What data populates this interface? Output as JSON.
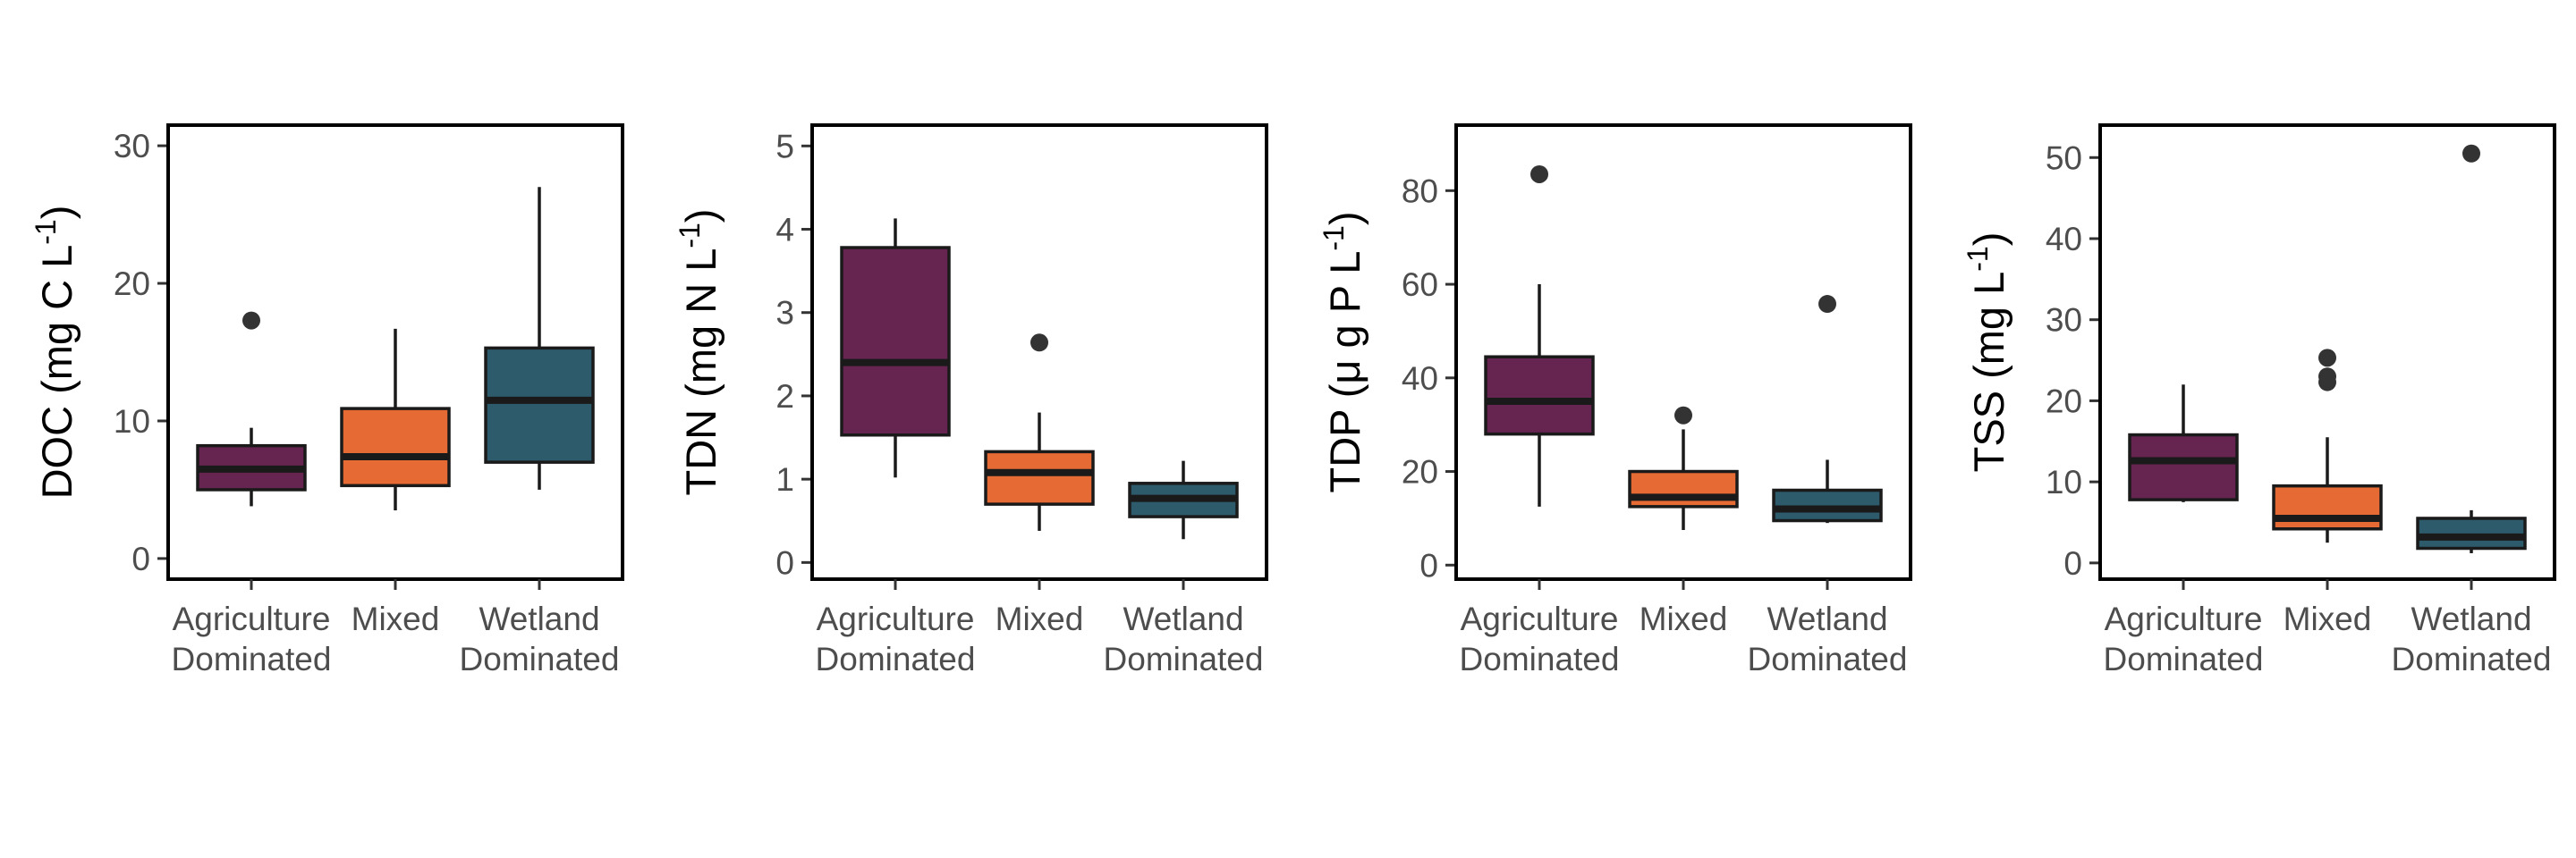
{
  "colors": {
    "Agriculture Dominated": "#662450",
    "Mixed": "#e56a34",
    "Wetland Dominated": "#2d5b6b"
  },
  "chart_data": [
    {
      "type": "box",
      "ylabel": "DOC (mg C L⁻¹)",
      "ylabel_parts": {
        "name": "DOC",
        "unit_prefix": "mg C L",
        "exponent": "-1"
      },
      "ylim": [
        -1.5,
        31.5
      ],
      "yticks": [
        0,
        10,
        20,
        30
      ],
      "categories": [
        {
          "line1": "Agriculture",
          "line2": "Dominated"
        },
        {
          "line1": "Mixed",
          "line2": ""
        },
        {
          "line1": "Wetland",
          "line2": "Dominated"
        }
      ],
      "boxes": [
        {
          "group": "Agriculture Dominated",
          "whisker_low": 3.8,
          "q1": 5.0,
          "median": 6.5,
          "q3": 8.2,
          "whisker_high": 9.5,
          "outliers": [
            17.3
          ]
        },
        {
          "group": "Mixed",
          "whisker_low": 3.5,
          "q1": 5.3,
          "median": 7.4,
          "q3": 10.9,
          "whisker_high": 16.7,
          "outliers": []
        },
        {
          "group": "Wetland Dominated",
          "whisker_low": 5.0,
          "q1": 7.0,
          "median": 11.5,
          "q3": 15.3,
          "whisker_high": 27.0,
          "outliers": []
        }
      ]
    },
    {
      "type": "box",
      "ylabel": "TDN (mg N L⁻¹)",
      "ylabel_parts": {
        "name": "TDN",
        "unit_prefix": "mg N L",
        "exponent": "-1"
      },
      "ylim": [
        -0.2,
        5.25
      ],
      "yticks": [
        0,
        1,
        2,
        3,
        4,
        5
      ],
      "categories": [
        {
          "line1": "Agriculture",
          "line2": "Dominated"
        },
        {
          "line1": "Mixed",
          "line2": ""
        },
        {
          "line1": "Wetland",
          "line2": "Dominated"
        }
      ],
      "boxes": [
        {
          "group": "Agriculture Dominated",
          "whisker_low": 1.02,
          "q1": 1.53,
          "median": 2.4,
          "q3": 3.78,
          "whisker_high": 4.13,
          "outliers": []
        },
        {
          "group": "Mixed",
          "whisker_low": 0.38,
          "q1": 0.7,
          "median": 1.08,
          "q3": 1.33,
          "whisker_high": 1.8,
          "outliers": [
            2.64
          ]
        },
        {
          "group": "Wetland Dominated",
          "whisker_low": 0.28,
          "q1": 0.55,
          "median": 0.77,
          "q3": 0.95,
          "whisker_high": 1.22,
          "outliers": []
        }
      ]
    },
    {
      "type": "box",
      "ylabel": "TDP (μ g P L⁻¹)",
      "ylabel_parts": {
        "name": "TDP",
        "unit_prefix": "μ g P L",
        "exponent": "-1"
      },
      "ylim": [
        -3,
        94
      ],
      "yticks": [
        0,
        20,
        40,
        60,
        80
      ],
      "categories": [
        {
          "line1": "Agriculture",
          "line2": "Dominated"
        },
        {
          "line1": "Mixed",
          "line2": ""
        },
        {
          "line1": "Wetland",
          "line2": "Dominated"
        }
      ],
      "boxes": [
        {
          "group": "Agriculture Dominated",
          "whisker_low": 12.5,
          "q1": 28.0,
          "median": 35.0,
          "q3": 44.5,
          "whisker_high": 60.0,
          "outliers": [
            83.5
          ]
        },
        {
          "group": "Mixed",
          "whisker_low": 7.5,
          "q1": 12.5,
          "median": 14.5,
          "q3": 20.0,
          "whisker_high": 29.0,
          "outliers": [
            32.0
          ]
        },
        {
          "group": "Wetland Dominated",
          "whisker_low": 9.0,
          "q1": 9.5,
          "median": 12.0,
          "q3": 16.0,
          "whisker_high": 22.5,
          "outliers": [
            55.8
          ]
        }
      ]
    },
    {
      "type": "box",
      "ylabel": "TSS (mg L⁻¹)",
      "ylabel_parts": {
        "name": "TSS",
        "unit_prefix": "mg L",
        "exponent": "-1"
      },
      "ylim": [
        -2,
        54
      ],
      "yticks": [
        0,
        10,
        20,
        30,
        40,
        50
      ],
      "categories": [
        {
          "line1": "Agriculture",
          "line2": "Dominated"
        },
        {
          "line1": "Mixed",
          "line2": ""
        },
        {
          "line1": "Wetland",
          "line2": "Dominated"
        }
      ],
      "boxes": [
        {
          "group": "Agriculture Dominated",
          "whisker_low": 7.5,
          "q1": 7.8,
          "median": 12.6,
          "q3": 15.8,
          "whisker_high": 22.0,
          "outliers": []
        },
        {
          "group": "Mixed",
          "whisker_low": 2.5,
          "q1": 4.2,
          "median": 5.5,
          "q3": 9.5,
          "whisker_high": 15.5,
          "outliers": [
            25.3,
            23.0,
            22.3
          ]
        },
        {
          "group": "Wetland Dominated",
          "whisker_low": 1.2,
          "q1": 1.8,
          "median": 3.2,
          "q3": 5.5,
          "whisker_high": 6.5,
          "outliers": [
            50.5
          ]
        }
      ]
    }
  ]
}
